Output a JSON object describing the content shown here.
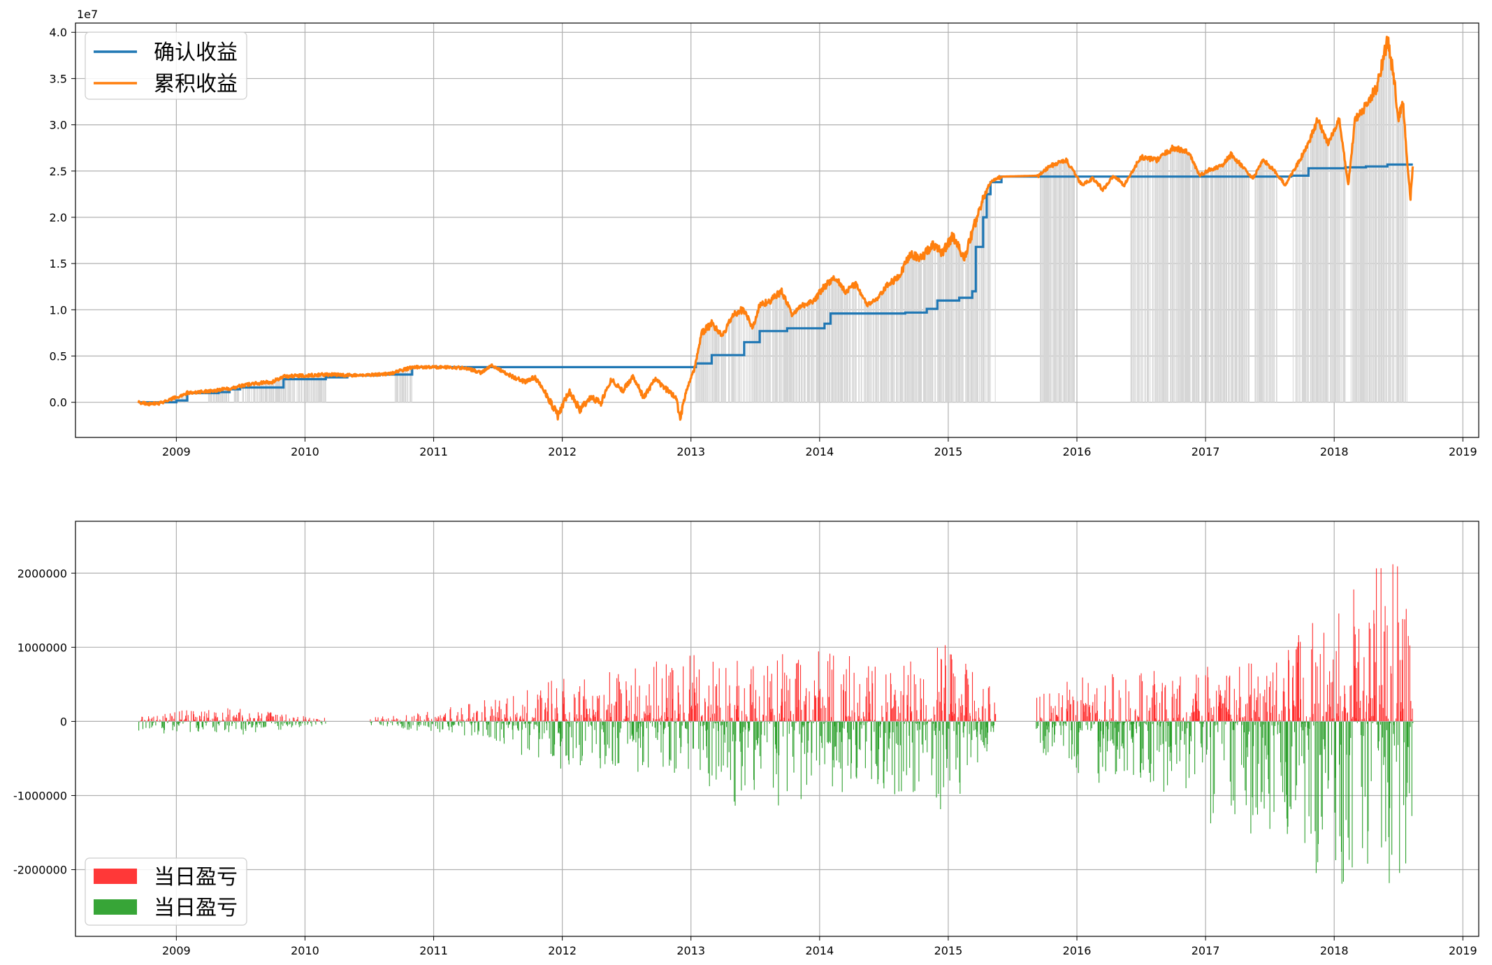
{
  "chart_data": [
    {
      "type": "line",
      "offset_label": "1e7",
      "xlim": [
        "2008-03-20",
        "2019-02-15"
      ],
      "ylim": [
        -0.38,
        4.1
      ],
      "x_ticks": [
        "2009",
        "2010",
        "2011",
        "2012",
        "2013",
        "2014",
        "2015",
        "2016",
        "2017",
        "2018",
        "2019"
      ],
      "y_ticks": [
        "4.0",
        "3.5",
        "3.0",
        "2.5",
        "2.0",
        "1.5",
        "1.0",
        "0.5",
        "0.0"
      ],
      "grid": true,
      "legend_position": "top-left",
      "series": [
        {
          "name": "确认收益",
          "color": "#1f77b4",
          "step": true,
          "points": [
            [
              "2008-09-15",
              0.0
            ],
            [
              "2009-01-01",
              0.02
            ],
            [
              "2009-02-01",
              0.1
            ],
            [
              "2009-05-01",
              0.11
            ],
            [
              "2009-06-01",
              0.14
            ],
            [
              "2009-07-01",
              0.16
            ],
            [
              "2009-11-01",
              0.25
            ],
            [
              "2010-03-01",
              0.27
            ],
            [
              "2010-05-01",
              0.29
            ],
            [
              "2010-08-01",
              0.3
            ],
            [
              "2010-11-01",
              0.38
            ],
            [
              "2013-01-15",
              0.42
            ],
            [
              "2013-03-01",
              0.51
            ],
            [
              "2013-06-01",
              0.65
            ],
            [
              "2013-07-15",
              0.77
            ],
            [
              "2013-10-01",
              0.8
            ],
            [
              "2014-01-15",
              0.85
            ],
            [
              "2014-02-01",
              0.96
            ],
            [
              "2014-09-01",
              0.97
            ],
            [
              "2014-11-01",
              1.01
            ],
            [
              "2014-12-01",
              1.1
            ],
            [
              "2015-02-01",
              1.13
            ],
            [
              "2015-03-10",
              1.2
            ],
            [
              "2015-03-20",
              1.68
            ],
            [
              "2015-04-10",
              2.0
            ],
            [
              "2015-04-20",
              2.25
            ],
            [
              "2015-05-01",
              2.38
            ],
            [
              "2015-06-01",
              2.44
            ],
            [
              "2017-09-01",
              2.45
            ],
            [
              "2017-10-20",
              2.53
            ],
            [
              "2018-02-01",
              2.54
            ],
            [
              "2018-04-01",
              2.55
            ],
            [
              "2018-06-01",
              2.57
            ],
            [
              "2018-08-12",
              2.57
            ]
          ]
        },
        {
          "name": "累积收益",
          "color": "#ff7f0e",
          "step": false,
          "points": [
            [
              "2008-09-15",
              0.0
            ],
            [
              "2008-10-15",
              -0.02
            ],
            [
              "2008-11-15",
              -0.01
            ],
            [
              "2008-12-15",
              0.03
            ],
            [
              "2009-02-01",
              0.1
            ],
            [
              "2009-04-01",
              0.12
            ],
            [
              "2009-06-01",
              0.15
            ],
            [
              "2009-08-01",
              0.2
            ],
            [
              "2009-10-01",
              0.22
            ],
            [
              "2009-11-01",
              0.28
            ],
            [
              "2010-01-01",
              0.29
            ],
            [
              "2010-03-01",
              0.3
            ],
            [
              "2010-06-01",
              0.29
            ],
            [
              "2010-09-01",
              0.31
            ],
            [
              "2010-11-01",
              0.38
            ],
            [
              "2011-02-01",
              0.38
            ],
            [
              "2011-04-01",
              0.37
            ],
            [
              "2011-05-15",
              0.32
            ],
            [
              "2011-06-15",
              0.4
            ],
            [
              "2011-08-01",
              0.3
            ],
            [
              "2011-09-15",
              0.22
            ],
            [
              "2011-10-15",
              0.27
            ],
            [
              "2011-11-15",
              0.1
            ],
            [
              "2011-12-20",
              -0.15
            ],
            [
              "2012-01-20",
              0.12
            ],
            [
              "2012-02-20",
              -0.08
            ],
            [
              "2012-03-20",
              0.05
            ],
            [
              "2012-04-20",
              0.0
            ],
            [
              "2012-05-20",
              0.25
            ],
            [
              "2012-06-20",
              0.12
            ],
            [
              "2012-07-20",
              0.28
            ],
            [
              "2012-08-20",
              0.05
            ],
            [
              "2012-09-20",
              0.25
            ],
            [
              "2012-10-20",
              0.15
            ],
            [
              "2012-11-20",
              0.05
            ],
            [
              "2012-12-01",
              -0.17
            ],
            [
              "2012-12-20",
              0.15
            ],
            [
              "2013-01-10",
              0.35
            ],
            [
              "2013-02-01",
              0.75
            ],
            [
              "2013-03-01",
              0.85
            ],
            [
              "2013-04-01",
              0.72
            ],
            [
              "2013-05-01",
              0.95
            ],
            [
              "2013-06-01",
              1.0
            ],
            [
              "2013-06-25",
              0.8
            ],
            [
              "2013-07-15",
              1.05
            ],
            [
              "2013-08-15",
              1.1
            ],
            [
              "2013-09-15",
              1.2
            ],
            [
              "2013-10-15",
              0.95
            ],
            [
              "2013-11-15",
              1.05
            ],
            [
              "2013-12-15",
              1.1
            ],
            [
              "2014-01-15",
              1.25
            ],
            [
              "2014-02-15",
              1.35
            ],
            [
              "2014-03-15",
              1.2
            ],
            [
              "2014-04-15",
              1.28
            ],
            [
              "2014-05-15",
              1.05
            ],
            [
              "2014-06-15",
              1.12
            ],
            [
              "2014-07-15",
              1.28
            ],
            [
              "2014-08-15",
              1.35
            ],
            [
              "2014-09-15",
              1.62
            ],
            [
              "2014-10-15",
              1.55
            ],
            [
              "2014-11-15",
              1.7
            ],
            [
              "2014-12-15",
              1.62
            ],
            [
              "2015-01-15",
              1.8
            ],
            [
              "2015-02-15",
              1.55
            ],
            [
              "2015-03-15",
              1.9
            ],
            [
              "2015-04-10",
              2.2
            ],
            [
              "2015-05-01",
              2.38
            ],
            [
              "2015-06-01",
              2.44
            ],
            [
              "2015-09-15",
              2.45
            ],
            [
              "2015-10-15",
              2.55
            ],
            [
              "2015-12-01",
              2.62
            ],
            [
              "2016-01-15",
              2.35
            ],
            [
              "2016-02-15",
              2.42
            ],
            [
              "2016-03-15",
              2.3
            ],
            [
              "2016-04-15",
              2.45
            ],
            [
              "2016-05-15",
              2.35
            ],
            [
              "2016-07-01",
              2.65
            ],
            [
              "2016-08-15",
              2.62
            ],
            [
              "2016-10-01",
              2.75
            ],
            [
              "2016-11-15",
              2.7
            ],
            [
              "2016-12-15",
              2.45
            ],
            [
              "2017-01-15",
              2.52
            ],
            [
              "2017-02-15",
              2.55
            ],
            [
              "2017-03-15",
              2.68
            ],
            [
              "2017-04-15",
              2.55
            ],
            [
              "2017-05-15",
              2.42
            ],
            [
              "2017-06-15",
              2.62
            ],
            [
              "2017-07-15",
              2.5
            ],
            [
              "2017-08-15",
              2.35
            ],
            [
              "2017-09-15",
              2.55
            ],
            [
              "2017-10-15",
              2.75
            ],
            [
              "2017-11-15",
              3.05
            ],
            [
              "2017-12-15",
              2.8
            ],
            [
              "2018-01-15",
              3.05
            ],
            [
              "2018-02-10",
              2.35
            ],
            [
              "2018-03-01",
              3.05
            ],
            [
              "2018-04-01",
              3.2
            ],
            [
              "2018-05-01",
              3.4
            ],
            [
              "2018-06-01",
              3.92
            ],
            [
              "2018-06-20",
              3.5
            ],
            [
              "2018-07-01",
              3.05
            ],
            [
              "2018-07-15",
              3.25
            ],
            [
              "2018-07-25",
              2.7
            ],
            [
              "2018-08-05",
              2.2
            ],
            [
              "2018-08-12",
              2.55
            ]
          ]
        }
      ]
    },
    {
      "type": "bar",
      "xlim": [
        "2008-03-20",
        "2019-02-15"
      ],
      "ylim": [
        -2900000,
        2700000
      ],
      "x_ticks": [
        "2009",
        "2010",
        "2011",
        "2012",
        "2013",
        "2014",
        "2015",
        "2016",
        "2017",
        "2018",
        "2019"
      ],
      "y_ticks": [
        "2000000",
        "1000000",
        "0",
        "-1000000",
        "-2000000"
      ],
      "grid": true,
      "legend_position": "bottom-left",
      "series": [
        {
          "name": "当日盈亏",
          "color": "#ff2d2d",
          "sign": "positive"
        },
        {
          "name": "当日盈亏",
          "color": "#2ca02c",
          "sign": "negative"
        }
      ],
      "activity_periods": [
        {
          "start": "2008-09-15",
          "end": "2010-03-01"
        },
        {
          "start": "2010-07-01",
          "end": "2015-05-15"
        },
        {
          "start": "2015-09-01",
          "end": "2018-08-12"
        }
      ],
      "envelope": [
        {
          "date": "2008-09-15",
          "up": 100000,
          "down": 150000
        },
        {
          "date": "2009-06-01",
          "up": 200000,
          "down": 200000
        },
        {
          "date": "2010-03-01",
          "up": 50000,
          "down": 50000
        },
        {
          "date": "2010-07-01",
          "up": 60000,
          "down": 60000
        },
        {
          "date": "2011-01-01",
          "up": 150000,
          "down": 150000
        },
        {
          "date": "2011-06-01",
          "up": 300000,
          "down": 300000
        },
        {
          "date": "2012-01-01",
          "up": 600000,
          "down": 650000
        },
        {
          "date": "2012-06-01",
          "up": 700000,
          "down": 650000
        },
        {
          "date": "2013-01-01",
          "up": 1000000,
          "down": 900000
        },
        {
          "date": "2013-06-01",
          "up": 950000,
          "down": 1200000
        },
        {
          "date": "2014-01-01",
          "up": 950000,
          "down": 1100000
        },
        {
          "date": "2014-06-01",
          "up": 850000,
          "down": 900000
        },
        {
          "date": "2015-01-01",
          "up": 1050000,
          "down": 1250000
        },
        {
          "date": "2015-05-15",
          "up": 400000,
          "down": 300000
        },
        {
          "date": "2015-09-01",
          "up": 300000,
          "down": 300000
        },
        {
          "date": "2016-01-01",
          "up": 700000,
          "down": 950000
        },
        {
          "date": "2016-06-01",
          "up": 650000,
          "down": 700000
        },
        {
          "date": "2017-01-01",
          "up": 750000,
          "down": 1400000
        },
        {
          "date": "2017-06-01",
          "up": 800000,
          "down": 1600000
        },
        {
          "date": "2018-01-01",
          "up": 1700000,
          "down": 2200000
        },
        {
          "date": "2018-06-01",
          "up": 2300000,
          "down": 2600000
        },
        {
          "date": "2018-08-12",
          "up": 1800000,
          "down": 2100000
        }
      ]
    }
  ]
}
